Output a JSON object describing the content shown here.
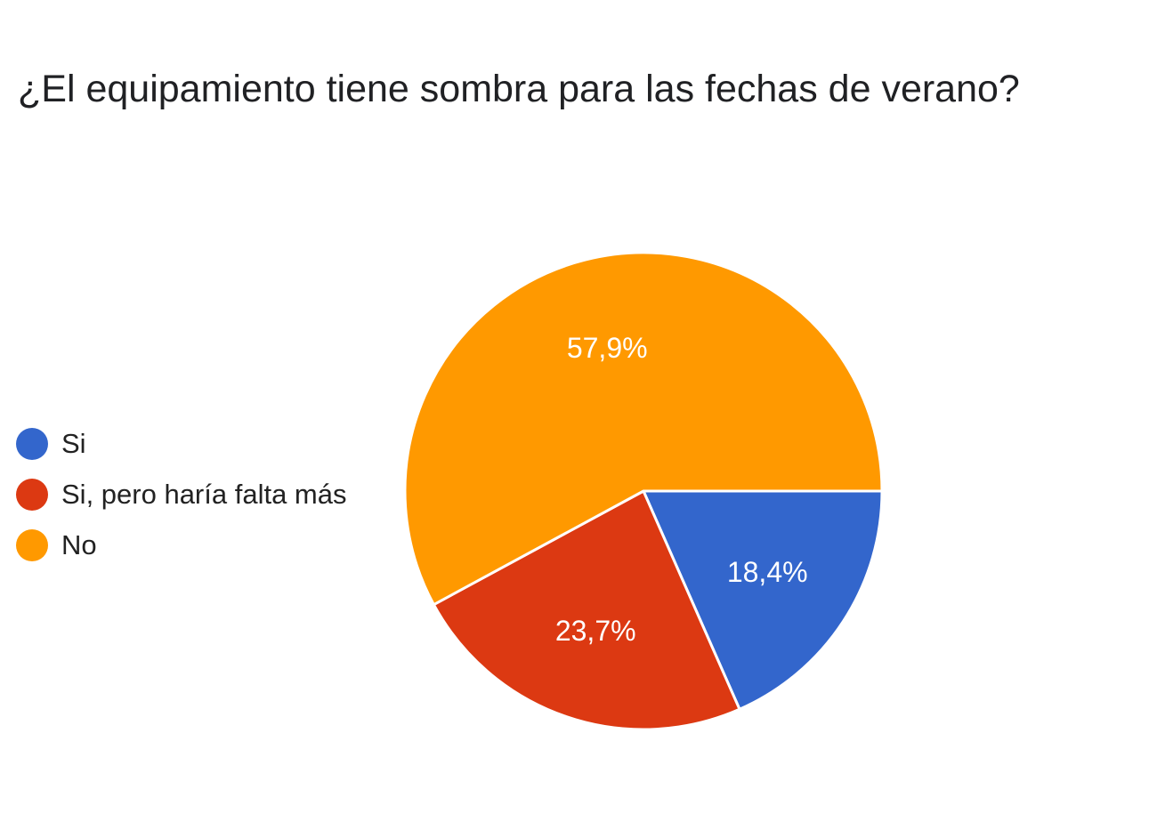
{
  "chart_data": {
    "type": "pie",
    "title": "¿El equipamiento tiene sombra para las fechas de verano?",
    "legend_position": "left",
    "slices": [
      {
        "label": "Si",
        "value": 18.4,
        "value_label": "18,4%",
        "color": "#3366cc"
      },
      {
        "label": "Si, pero haría falta más",
        "value": 23.7,
        "value_label": "23,7%",
        "color": "#dc3912"
      },
      {
        "label": "No",
        "value": 57.9,
        "value_label": "57,9%",
        "color": "#ff9900"
      }
    ]
  }
}
